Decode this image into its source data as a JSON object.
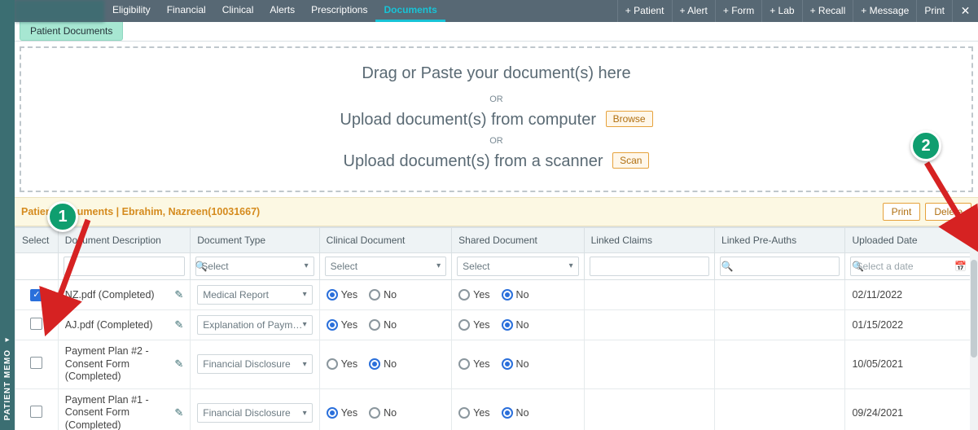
{
  "colors": {
    "accent": "#18c3d6",
    "topnav_bg": "#576874",
    "rail_bg": "#3b6e72",
    "banner_bg": "#fcf8e3",
    "orange_border": "#e6a23c",
    "green_badge": "#0f9e6f",
    "arrow": "#d62222",
    "radio_on": "#2a6fdb"
  },
  "left_rail": {
    "label": "PATIENT MEMO"
  },
  "topnav": {
    "tabs": [
      "Eligibility",
      "Financial",
      "Clinical",
      "Alerts",
      "Prescriptions",
      "Documents"
    ],
    "active_tab": "Documents",
    "actions": [
      "+ Patient",
      "+ Alert",
      "+ Form",
      "+ Lab",
      "+ Recall",
      "+ Message",
      "Print"
    ]
  },
  "subtab": {
    "label": "Patient Documents"
  },
  "dropzone": {
    "heading": "Drag or Paste your document(s) here",
    "or": "OR",
    "line_computer": "Upload document(s) from computer",
    "btn_browse": "Browse",
    "line_scanner": "Upload document(s) from a scanner",
    "btn_scan": "Scan"
  },
  "banner": {
    "title": "Patient Documents | Ebrahim, Nazreen(10031667)",
    "btn_print": "Print",
    "btn_delete": "Delete"
  },
  "table": {
    "headers": {
      "select": "Select",
      "description": "Document Description",
      "type": "Document Type",
      "clinical": "Clinical Document",
      "shared": "Shared Document",
      "linked_claims": "Linked Claims",
      "linked_preauths": "Linked Pre-Auths",
      "uploaded": "Uploaded Date"
    },
    "filters": {
      "select_placeholder": "Select",
      "date_placeholder": "Select a date"
    },
    "radio_labels": {
      "yes": "Yes",
      "no": "No"
    },
    "rows": [
      {
        "selected": true,
        "description": "NZ.pdf (Completed)",
        "type": "Medical Report",
        "clinical": "yes",
        "shared": "no",
        "linked_claims": "",
        "linked_preauths": "",
        "uploaded": "02/11/2022"
      },
      {
        "selected": false,
        "description": "AJ.pdf (Completed)",
        "type": "Explanation of Payments(E",
        "clinical": "yes",
        "shared": "no",
        "linked_claims": "",
        "linked_preauths": "",
        "uploaded": "01/15/2022"
      },
      {
        "selected": false,
        "description": "Payment Plan #2 - Consent Form (Completed)",
        "type": "Financial Disclosure",
        "clinical": "no",
        "shared": "no",
        "linked_claims": "",
        "linked_preauths": "",
        "uploaded": "10/05/2021"
      },
      {
        "selected": false,
        "description": "Payment Plan #1 - Consent Form (Completed)",
        "type": "Financial Disclosure",
        "clinical": "yes",
        "shared": "no",
        "linked_claims": "",
        "linked_preauths": "",
        "uploaded": "09/24/2021"
      }
    ]
  },
  "annotations": {
    "badge1": "1",
    "badge2": "2"
  }
}
